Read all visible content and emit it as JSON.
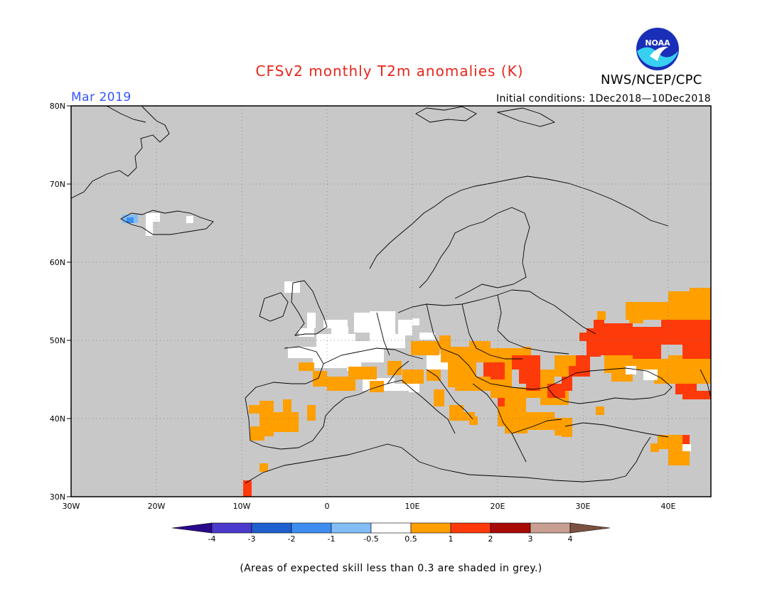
{
  "header": {
    "title": "CFSv2 monthly T2m anomalies (K)",
    "month": "Mar 2019",
    "initial_conditions": "Initial conditions: 1Dec2018—10Dec2018",
    "agency": "NWS/NCEP/CPC",
    "logo_text": "NOAA"
  },
  "colors": {
    "title": "#e8261c",
    "month": "#3355ff",
    "background_grey": "#c8c8c8"
  },
  "map": {
    "lat_labels": [
      "80N",
      "70N",
      "60N",
      "50N",
      "40N",
      "30N"
    ],
    "lon_labels": [
      "30W",
      "20W",
      "10W",
      "0",
      "10E",
      "20E",
      "30E",
      "40E"
    ]
  },
  "legend": {
    "labels": [
      "-4",
      "-3",
      "-2",
      "-1",
      "-0.5",
      "0.5",
      "1",
      "2",
      "3",
      "4"
    ],
    "colors": [
      "#2a0a8c",
      "#4b3acb",
      "#1f5fcf",
      "#3e8df0",
      "#82bdf5",
      "#ffffff",
      "#ff9f00",
      "#ff3a0a",
      "#a80a08",
      "#c79e91",
      "#7d5140"
    ]
  },
  "footnote": "(Areas of expected skill less than 0.3 are shaded in grey.)"
}
